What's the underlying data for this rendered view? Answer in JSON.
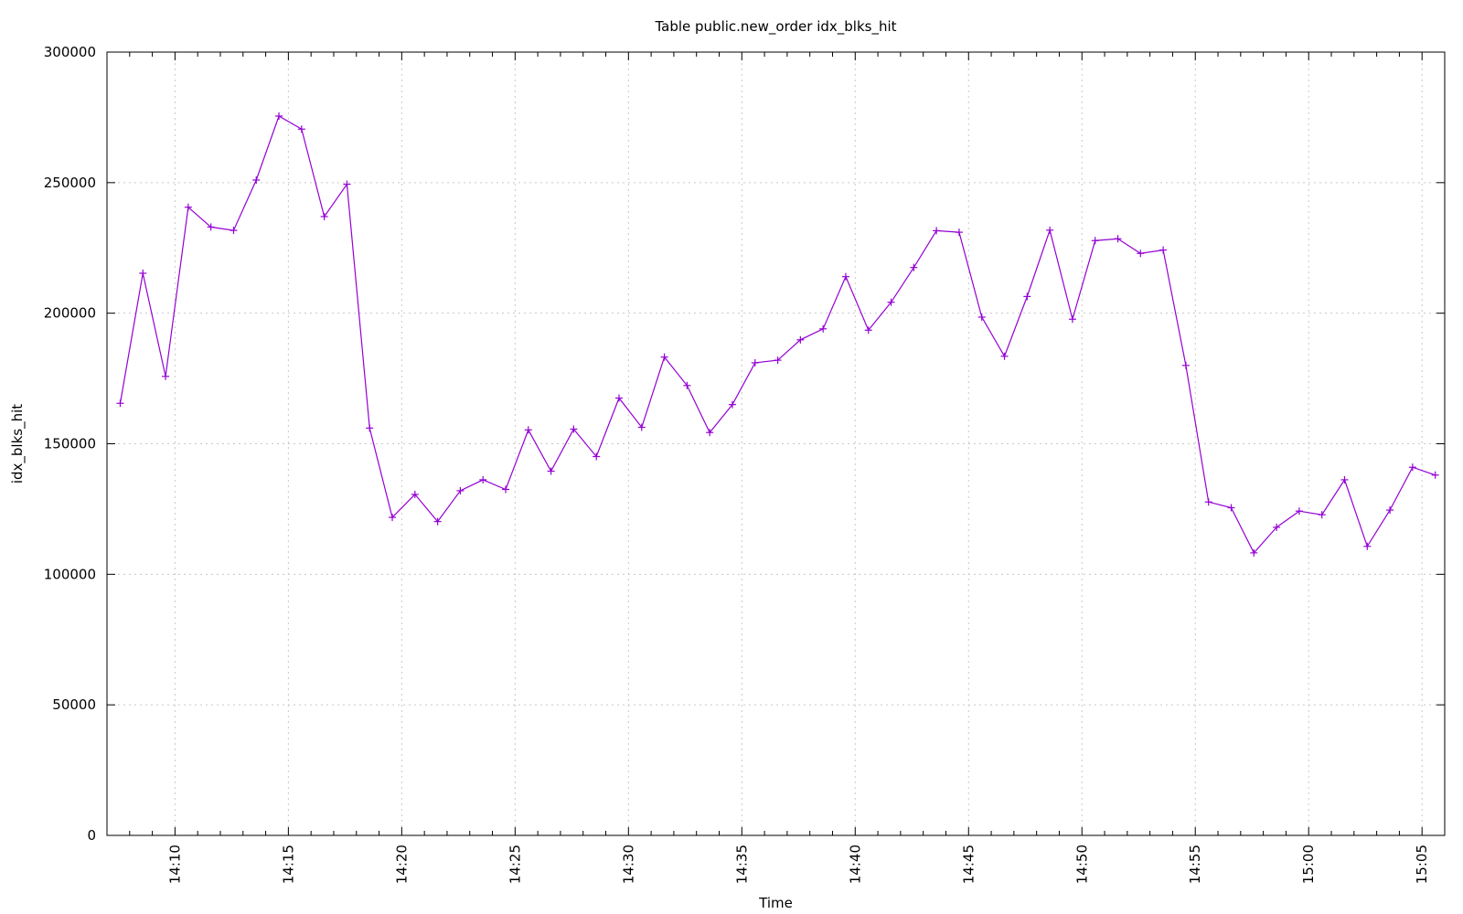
{
  "chart_data": {
    "type": "line",
    "title": "Table public.new_order idx_blks_hit",
    "xlabel": "Time",
    "ylabel": "idx_blks_hit",
    "x_range": [
      "14:07:00",
      "15:06:00"
    ],
    "ylim": [
      0,
      300000
    ],
    "y_ticks": [
      0,
      50000,
      100000,
      150000,
      200000,
      250000,
      300000
    ],
    "x_ticks": [
      "14:10",
      "14:15",
      "14:20",
      "14:25",
      "14:30",
      "14:35",
      "14:40",
      "14:45",
      "14:50",
      "14:55",
      "15:00",
      "15:05"
    ],
    "grid": true,
    "line_color": "#9400d3",
    "marker": "plus",
    "series": [
      {
        "x": [
          "14:07:35",
          "14:08:35",
          "14:09:35",
          "14:10:35",
          "14:11:35",
          "14:12:35",
          "14:13:35",
          "14:14:35",
          "14:15:35",
          "14:16:35",
          "14:17:35",
          "14:18:35",
          "14:19:35",
          "14:20:35",
          "14:21:35",
          "14:22:35",
          "14:23:35",
          "14:24:35",
          "14:25:35",
          "14:26:35",
          "14:27:35",
          "14:28:35",
          "14:29:35",
          "14:30:35",
          "14:31:35",
          "14:32:35",
          "14:33:35",
          "14:34:35",
          "14:35:35",
          "14:36:35",
          "14:37:35",
          "14:38:35",
          "14:39:35",
          "14:40:35",
          "14:41:35",
          "14:42:35",
          "14:43:35",
          "14:44:35",
          "14:45:35",
          "14:46:35",
          "14:47:35",
          "14:48:35",
          "14:49:35",
          "14:50:35",
          "14:51:35",
          "14:52:35",
          "14:53:35",
          "14:54:35",
          "14:55:35",
          "14:56:35",
          "14:57:35",
          "14:58:35",
          "14:59:35",
          "15:00:35",
          "15:01:35",
          "15:02:35",
          "15:03:35",
          "15:04:35",
          "15:05:35"
        ],
        "values": [
          165500,
          215300,
          175800,
          240600,
          233000,
          231700,
          251000,
          275500,
          270500,
          237000,
          249400,
          156000,
          121800,
          130600,
          120200,
          132000,
          136200,
          132500,
          155300,
          139500,
          155600,
          145100,
          167500,
          156300,
          183200,
          172300,
          154300,
          165000,
          181000,
          182000,
          189800,
          194000,
          214000,
          193500,
          204200,
          217500,
          231600,
          231000,
          198500,
          183500,
          206400,
          231800,
          197700,
          227800,
          228500,
          222900,
          224200,
          180000,
          127700,
          125500,
          108200,
          118000,
          124200,
          122800,
          136200,
          110700,
          124600,
          141000,
          138000
        ]
      }
    ]
  }
}
